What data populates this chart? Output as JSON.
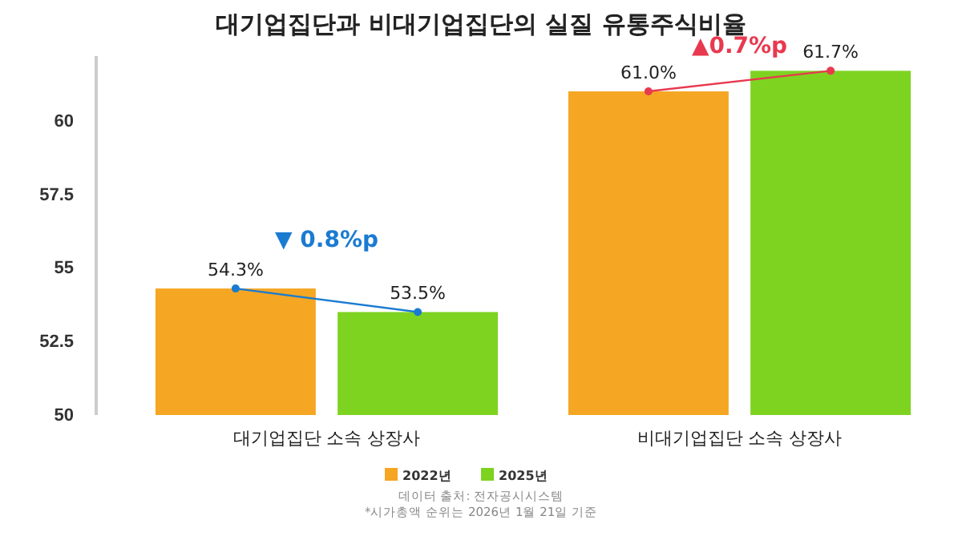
{
  "chart_data": {
    "type": "bar",
    "title": "대기업집단과 비대기업집단의 실질 유통주식비율",
    "categories": [
      "대기업집단 소속 상장사",
      "비대기업집단 소속 상장사"
    ],
    "series": [
      {
        "name": "2022년",
        "color": "#f5a623",
        "values": [
          54.3,
          61.0
        ],
        "value_labels": [
          "54.3%",
          "61.0%"
        ]
      },
      {
        "name": "2025년",
        "color": "#7ed321",
        "values": [
          53.5,
          61.7
        ],
        "value_labels": [
          "53.5%",
          "61.7%"
        ]
      }
    ],
    "ylim": [
      50,
      62.2
    ],
    "yticks": [
      50,
      52.5,
      55,
      57.5,
      60
    ],
    "grid": false,
    "legend": "bottom",
    "annotations": [
      "▼ 0.8%p",
      "▲0.7%p",
      "데이터 출처: 전자공시시스템",
      "*시가총액 순위는 2026년 1월 21일 기준"
    ]
  }
}
